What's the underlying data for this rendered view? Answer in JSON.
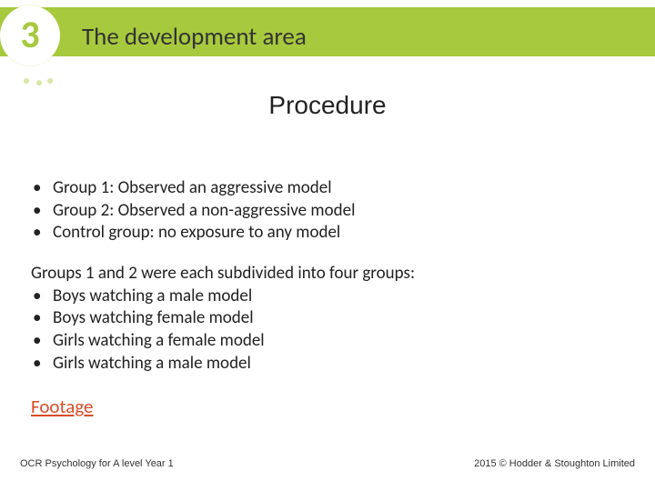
{
  "theme": {
    "accent": "#a7c93d",
    "link_color": "#d84b27",
    "text_color": "#222222",
    "background": "#ffffff"
  },
  "header": {
    "chapter_number": "3",
    "title": "The development area"
  },
  "section_title": "Procedure",
  "groups": [
    "Group 1: Observed an aggressive model",
    "Group 2: Observed a non-aggressive model",
    "Control group: no exposure to any model"
  ],
  "subdivision_lead": "Groups 1 and 2 were each subdivided into four groups:",
  "subdivisions": [
    "Boys watching a male model",
    "Boys watching female model",
    "Girls watching a female model",
    "Girls watching a male model"
  ],
  "link": {
    "label": "Footage"
  },
  "footer": {
    "left": "OCR Psychology for A level Year 1",
    "right": "2015 © Hodder & Stoughton Limited"
  }
}
